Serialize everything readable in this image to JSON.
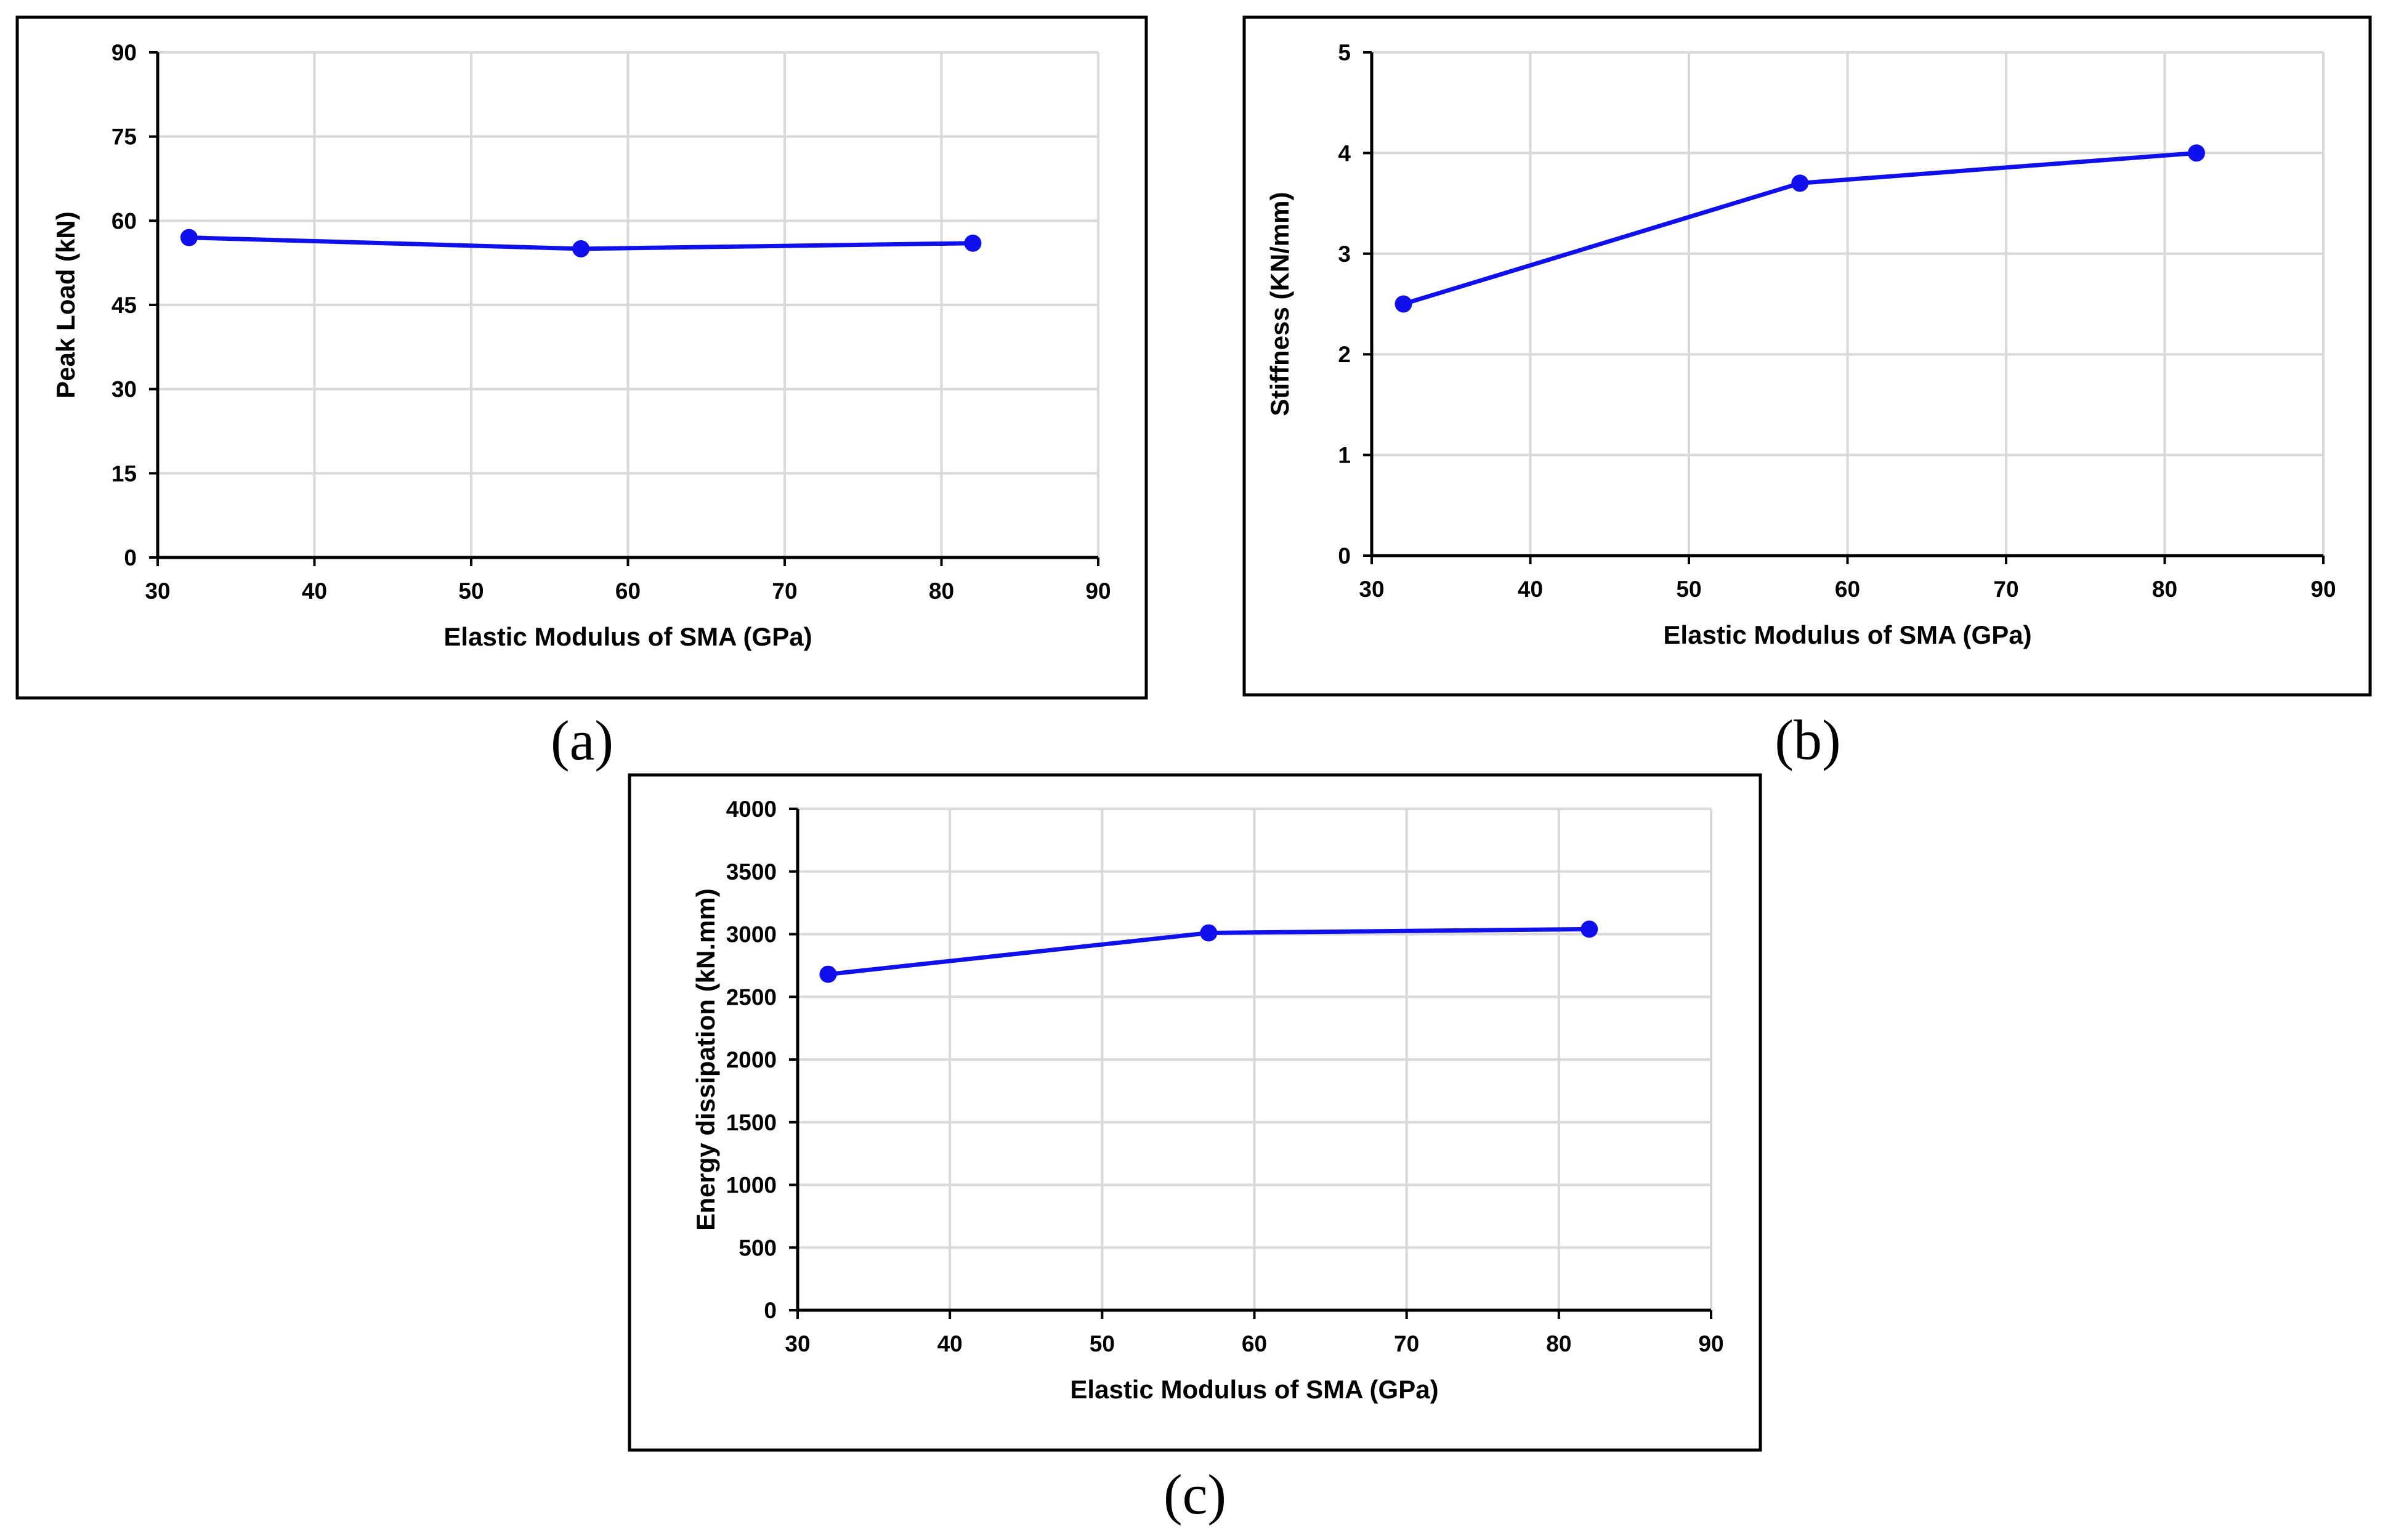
{
  "chart_data": [
    {
      "type": "line",
      "panel": "a",
      "caption": "(a)",
      "title": "",
      "xlabel": "Elastic Modulus of SMA (GPa)",
      "ylabel": "Peak Load (kN)",
      "xlim": [
        30,
        90
      ],
      "ylim": [
        0,
        90
      ],
      "xticks": [
        30,
        40,
        50,
        60,
        70,
        80,
        90
      ],
      "yticks": [
        0,
        15,
        30,
        45,
        60,
        75,
        90
      ],
      "grid": true,
      "series": [
        {
          "name": "Peak Load",
          "color": "#1010ee",
          "x": [
            32,
            57,
            82
          ],
          "y": [
            57,
            55,
            56
          ]
        }
      ]
    },
    {
      "type": "line",
      "panel": "b",
      "caption": "(b)",
      "title": "",
      "xlabel": "Elastic Modulus of SMA (GPa)",
      "ylabel": "Stiffness (KN/mm)",
      "xlim": [
        30,
        90
      ],
      "ylim": [
        0,
        5
      ],
      "xticks": [
        30,
        40,
        50,
        60,
        70,
        80,
        90
      ],
      "yticks": [
        0,
        1,
        2,
        3,
        4,
        5
      ],
      "grid": true,
      "series": [
        {
          "name": "Stiffness",
          "color": "#1010ee",
          "x": [
            32,
            57,
            82
          ],
          "y": [
            2.5,
            3.7,
            4.0
          ]
        }
      ]
    },
    {
      "type": "line",
      "panel": "c",
      "caption": "(c)",
      "title": "",
      "xlabel": "Elastic Modulus of SMA (GPa)",
      "ylabel": "Energy dissipation  (kN.mm)",
      "xlim": [
        30,
        90
      ],
      "ylim": [
        0,
        4000
      ],
      "xticks": [
        30,
        40,
        50,
        60,
        70,
        80,
        90
      ],
      "yticks": [
        0,
        500,
        1000,
        1500,
        2000,
        2500,
        3000,
        3500,
        4000
      ],
      "grid": true,
      "series": [
        {
          "name": "Energy dissipation",
          "color": "#1010ee",
          "x": [
            32,
            57,
            82
          ],
          "y": [
            2680,
            3010,
            3040
          ]
        }
      ]
    }
  ]
}
